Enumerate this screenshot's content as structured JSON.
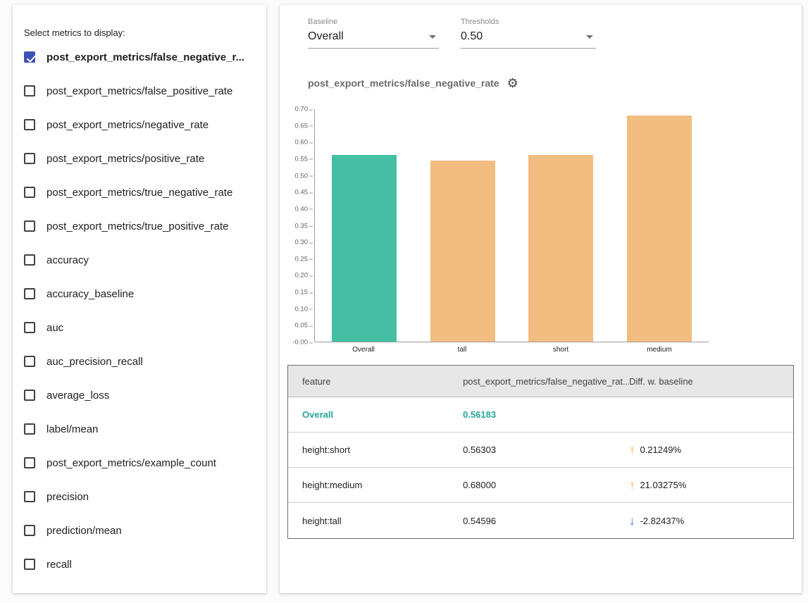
{
  "sidebar": {
    "title": "Select metrics to display:",
    "metrics": [
      {
        "label": "post_export_metrics/false_negative_r...",
        "checked": true
      },
      {
        "label": "post_export_metrics/false_positive_rate",
        "checked": false
      },
      {
        "label": "post_export_metrics/negative_rate",
        "checked": false
      },
      {
        "label": "post_export_metrics/positive_rate",
        "checked": false
      },
      {
        "label": "post_export_metrics/true_negative_rate",
        "checked": false
      },
      {
        "label": "post_export_metrics/true_positive_rate",
        "checked": false
      },
      {
        "label": "accuracy",
        "checked": false
      },
      {
        "label": "accuracy_baseline",
        "checked": false
      },
      {
        "label": "auc",
        "checked": false
      },
      {
        "label": "auc_precision_recall",
        "checked": false
      },
      {
        "label": "average_loss",
        "checked": false
      },
      {
        "label": "label/mean",
        "checked": false
      },
      {
        "label": "post_export_metrics/example_count",
        "checked": false
      },
      {
        "label": "precision",
        "checked": false
      },
      {
        "label": "prediction/mean",
        "checked": false
      },
      {
        "label": "recall",
        "checked": false
      }
    ]
  },
  "controls": {
    "baseline": {
      "label": "Baseline",
      "value": "Overall"
    },
    "thresholds": {
      "label": "Thresholds",
      "value": "0.50"
    }
  },
  "chart": {
    "title": "post_export_metrics/false_negative_rate"
  },
  "chart_data": {
    "type": "bar",
    "title": "post_export_metrics/false_negative_rate",
    "categories": [
      "Overall",
      "tall",
      "short",
      "medium"
    ],
    "values": [
      0.56183,
      0.54596,
      0.56303,
      0.68
    ],
    "colors": [
      "#44bfa3",
      "#f2bd80",
      "#f2bd80",
      "#f2bd80"
    ],
    "ylim": [
      0,
      0.7
    ],
    "ytick_step": 0.05,
    "xlabel": "",
    "ylabel": "",
    "grid": false,
    "legend": "none",
    "baseline_category": "Overall"
  },
  "table": {
    "headers": [
      "feature",
      "post_export_metrics/false_negative_rat...",
      "Diff. w. baseline"
    ],
    "rows": [
      {
        "feature": "Overall",
        "value": "0.56183",
        "diff": "",
        "direction": "",
        "baseline": true
      },
      {
        "feature": "height:short",
        "value": "0.56303",
        "diff": "0.21249%",
        "direction": "up",
        "baseline": false
      },
      {
        "feature": "height:medium",
        "value": "0.68000",
        "diff": "21.03275%",
        "direction": "up",
        "baseline": false
      },
      {
        "feature": "height:tall",
        "value": "0.54596",
        "diff": "-2.82437%",
        "direction": "down",
        "baseline": false
      }
    ]
  },
  "colors": {
    "baseline_bar": "#44bfa3",
    "slice_bar": "#f2bd80",
    "checkbox_checked": "#3f51b5",
    "baseline_text": "#26a69a",
    "up_arrow": "#f9a825",
    "down_arrow": "#3d5afe"
  }
}
